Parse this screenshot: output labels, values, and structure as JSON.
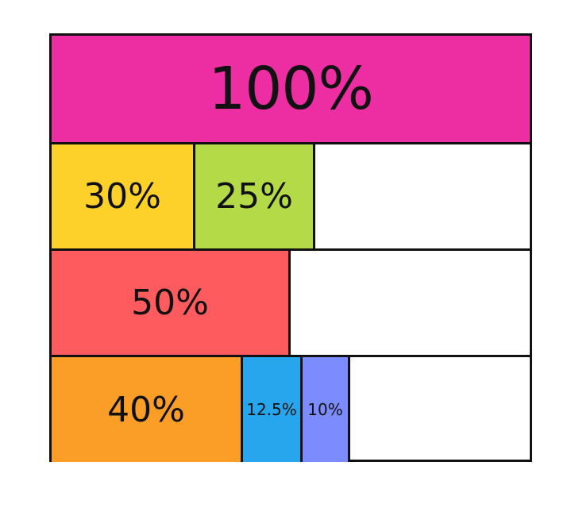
{
  "rows": [
    {
      "segments": [
        {
          "label": "100%",
          "value": 100,
          "color": "#EC2EA2"
        }
      ]
    },
    {
      "segments": [
        {
          "label": "30%",
          "value": 30,
          "color": "#FDD12A"
        },
        {
          "label": "25%",
          "value": 25,
          "color": "#B5DA48"
        }
      ]
    },
    {
      "segments": [
        {
          "label": "50%",
          "value": 50,
          "color": "#FD5B5E"
        }
      ]
    },
    {
      "segments": [
        {
          "label": "40%",
          "value": 40,
          "color": "#FB9E27"
        },
        {
          "label": "12.5%",
          "value": 12.5,
          "color": "#27A6EE"
        },
        {
          "label": "10%",
          "value": 10,
          "color": "#7C8BFD"
        }
      ]
    }
  ]
}
